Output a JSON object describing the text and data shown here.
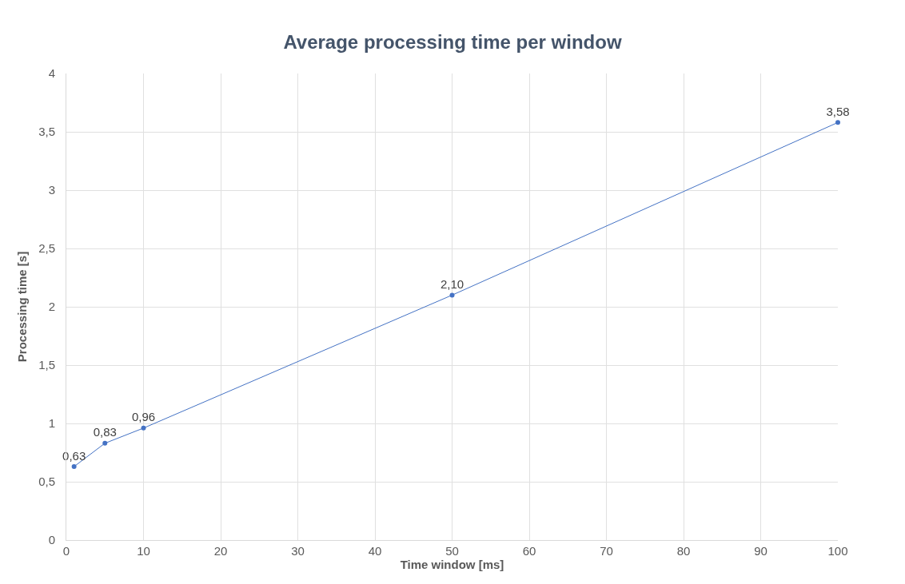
{
  "chart_data": {
    "type": "line",
    "title": "Average processing time per window",
    "xlabel": "Time window [ms]",
    "ylabel": "Processing time [s]",
    "x": [
      1,
      5,
      10,
      50,
      100
    ],
    "series": [
      {
        "color": "#4472c4",
        "values": [
          0.63,
          0.83,
          0.96,
          2.1,
          3.58
        ],
        "value_labels": [
          "0,63",
          "0,83",
          "0,96",
          "2,10",
          "3,58"
        ]
      }
    ],
    "xlim": [
      0,
      100
    ],
    "xticks": [
      0,
      10,
      20,
      30,
      40,
      50,
      60,
      70,
      80,
      90,
      100
    ],
    "ylim": [
      0,
      4
    ],
    "yticks": [
      0,
      {
        "value": 0.5,
        "label": "0,5"
      },
      1,
      {
        "value": 1.5,
        "label": "1,5"
      },
      2,
      {
        "value": 2.5,
        "label": "2,5"
      },
      3,
      {
        "value": 3.5,
        "label": "3,5"
      },
      4
    ],
    "grid": true,
    "marker": "circle",
    "line_style": "solid"
  }
}
